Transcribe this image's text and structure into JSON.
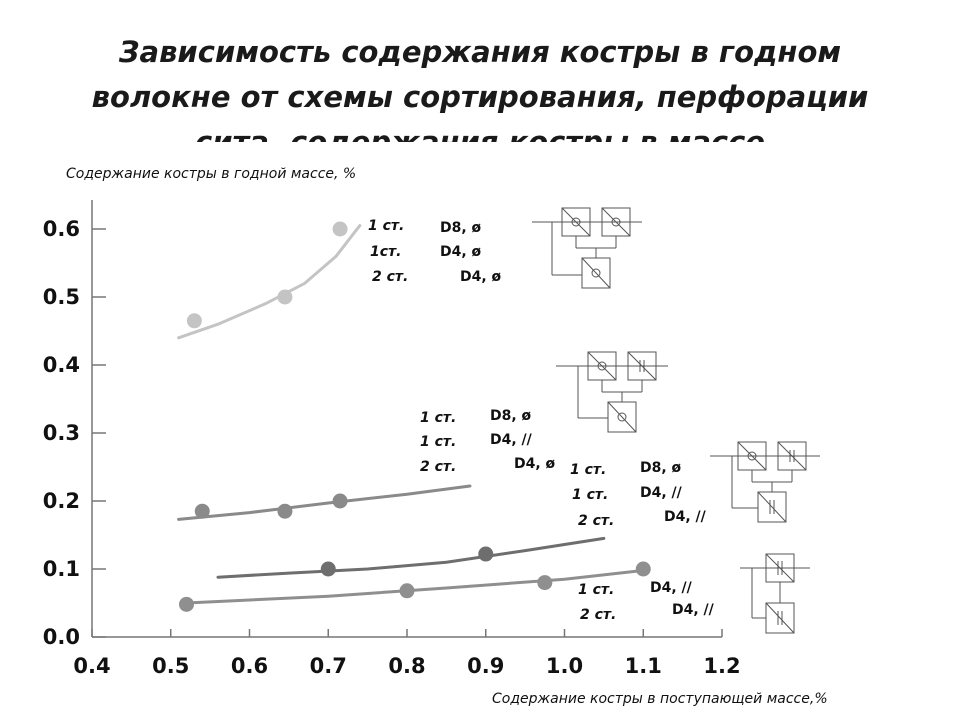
{
  "title": "Зависимость содержания костры в годном волокне от схемы сортирования, перфорации сита, содержания костры в массе",
  "chart_data": {
    "type": "scatter",
    "title": "Зависимость содержания костры в годном волокне от схемы сортирования, перфорации сита, содержания костры в массе",
    "xlabel": "Содержание костры в поступающей массе,%",
    "ylabel": "Содержание костры в годной массе, %",
    "xlim": [
      0.4,
      1.2
    ],
    "ylim": [
      0.0,
      0.6
    ],
    "xticks": [
      "0.4",
      "0.5",
      "0.6",
      "0.7",
      "0.8",
      "0.9",
      "1.0",
      "1.1",
      "1.2"
    ],
    "yticks": [
      "0.0",
      "0.1",
      "0.2",
      "0.3",
      "0.4",
      "0.5",
      "0.6"
    ],
    "grid": false,
    "series": [
      {
        "color": "#c4c4c4",
        "points": [
          [
            0.53,
            0.465
          ],
          [
            0.645,
            0.5
          ],
          [
            0.715,
            0.6
          ]
        ],
        "trend": [
          [
            0.51,
            0.44
          ],
          [
            0.56,
            0.46
          ],
          [
            0.62,
            0.49
          ],
          [
            0.67,
            0.52
          ],
          [
            0.71,
            0.56
          ],
          [
            0.74,
            0.605
          ]
        ],
        "legend": [
          {
            "stage": "1 ст.",
            "sieve": "D8, ø"
          },
          {
            "stage": "1ст.",
            "sieve": "D4, ø"
          },
          {
            "stage": "2 ст.",
            "sieve": "D4, ø"
          }
        ]
      },
      {
        "color": "#8a8a8a",
        "points": [
          [
            0.54,
            0.185
          ],
          [
            0.645,
            0.185
          ],
          [
            0.715,
            0.2
          ]
        ],
        "trend": [
          [
            0.51,
            0.173
          ],
          [
            0.6,
            0.183
          ],
          [
            0.7,
            0.197
          ],
          [
            0.8,
            0.21
          ],
          [
            0.88,
            0.222
          ]
        ],
        "legend": [
          {
            "stage": "1 ст.",
            "sieve": "D8, ø"
          },
          {
            "stage": "1 ст.",
            "sieve": "D4, //"
          },
          {
            "stage": "2 ст.",
            "sieve": "D4, ø"
          }
        ]
      },
      {
        "color": "#6e6e6e",
        "points": [
          [
            0.7,
            0.1
          ],
          [
            0.9,
            0.122
          ]
        ],
        "trend": [
          [
            0.56,
            0.088
          ],
          [
            0.65,
            0.094
          ],
          [
            0.75,
            0.1
          ],
          [
            0.85,
            0.11
          ],
          [
            0.95,
            0.127
          ],
          [
            1.05,
            0.145
          ]
        ],
        "legend": [
          {
            "stage": "1 ст.",
            "sieve": "D8, ø"
          },
          {
            "stage": "1 ст.",
            "sieve": "D4, //"
          },
          {
            "stage": "2 ст.",
            "sieve": "D4, //"
          }
        ]
      },
      {
        "color": "#8f8f8f",
        "points": [
          [
            0.52,
            0.048
          ],
          [
            0.8,
            0.068
          ],
          [
            0.975,
            0.08
          ],
          [
            1.1,
            0.1
          ]
        ],
        "trend": [
          [
            0.52,
            0.05
          ],
          [
            0.7,
            0.06
          ],
          [
            0.85,
            0.072
          ],
          [
            1.0,
            0.085
          ],
          [
            1.1,
            0.098
          ]
        ],
        "legend": [
          {
            "stage": "1 ст.",
            "sieve": "D4, //"
          },
          {
            "stage": "2 ст.",
            "sieve": "D4, //"
          }
        ]
      }
    ]
  }
}
